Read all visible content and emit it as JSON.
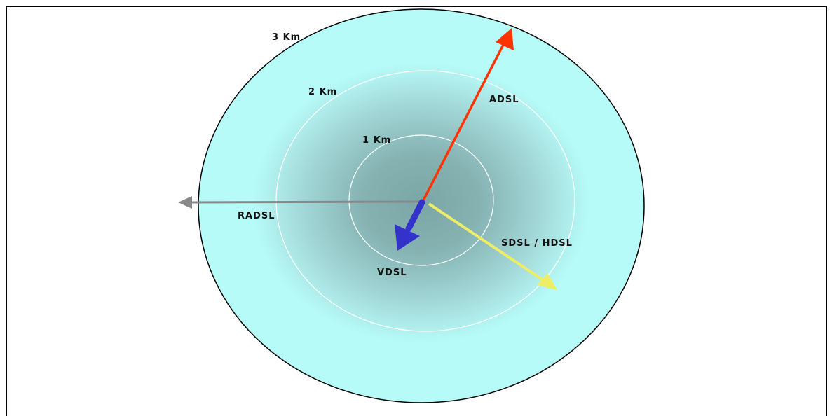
{
  "diagram": {
    "rings": [
      {
        "label": "1 Km"
      },
      {
        "label": "2 Km"
      },
      {
        "label": "3 Km"
      }
    ],
    "arrows": [
      {
        "label": "ADSL",
        "color": "#ff3300"
      },
      {
        "label": "RADSL",
        "color": "#888888"
      },
      {
        "label": "VDSL",
        "color": "#3333cc"
      },
      {
        "label": "SDSL / HDSL",
        "color": "#eeee66"
      }
    ],
    "colors": {
      "outer_fill": "#b6fbf8",
      "center_fill": "#7aa6a6",
      "ring_stroke": "#ffffff",
      "outline": "#000000"
    }
  }
}
